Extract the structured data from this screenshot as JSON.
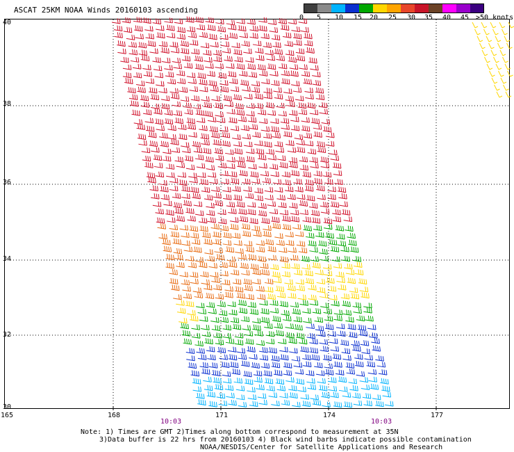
{
  "title": "ASCAT 25KM NOAA Winds 20160103 ascending",
  "legend": {
    "labels": [
      "0",
      "5",
      "10",
      "15",
      "20",
      "25",
      "30",
      "35",
      "40",
      "45",
      ">50 knots"
    ],
    "colors": [
      "#3f3f3f",
      "#8a8a8a",
      "#00b4ff",
      "#0a2fd0",
      "#00a800",
      "#ffd700",
      "#ffa500",
      "#e8462a",
      "#c81428",
      "#6b4226",
      "#ff00ff",
      "#9900cc",
      "#3b0080"
    ]
  },
  "axes": {
    "x_ticks": [
      "165",
      "168",
      "171",
      "174",
      "177"
    ],
    "y_ticks": [
      "40",
      "38",
      "36",
      "34",
      "32",
      "30"
    ]
  },
  "times": [
    "10:03",
    "10:03"
  ],
  "notes": [
    "Note: 1) Times are GMT 2)Times along bottom correspond to measurement at 35N",
    "3)Data buffer is 22 hrs from 20160103 4) Black wind barbs indicate possible contamination",
    "NOAA/NESDIS/Center for Satellite Applications and Research"
  ]
}
